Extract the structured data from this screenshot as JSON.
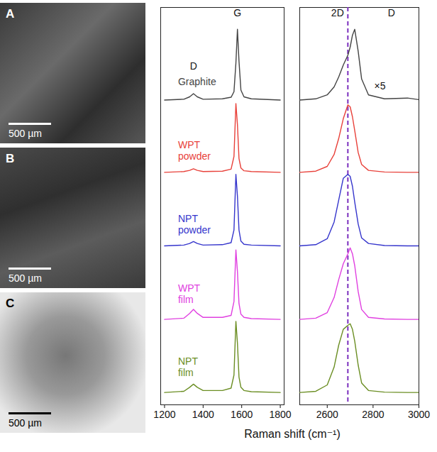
{
  "chart_data": [
    {
      "type": "line",
      "xlabel": "Raman shift (cm⁻¹)",
      "xlim": [
        1180,
        1820
      ],
      "xticks": [
        1200,
        1400,
        1600,
        1800
      ],
      "ylim": [
        0,
        100
      ],
      "tick_labels": "x",
      "x": [
        1200,
        1300,
        1330,
        1350,
        1370,
        1400,
        1500,
        1545,
        1560,
        1570,
        1578,
        1586,
        1596,
        1612,
        1650,
        1800
      ],
      "series": [
        {
          "name": "Graphite",
          "color": "#444444",
          "label_y": 81.3,
          "values": [
            76.7,
            76.9,
            77.5,
            78.3,
            77.5,
            76.9,
            77.0,
            77.4,
            78.8,
            86.0,
            94.5,
            86.5,
            79.2,
            77.5,
            77.0,
            76.7
          ]
        },
        {
          "name": "WPT powder",
          "color": "#e8413a",
          "label_y": 64,
          "values": [
            58.5,
            58.7,
            59.0,
            59.4,
            59.0,
            58.7,
            58.8,
            59.3,
            62.5,
            75.8,
            70.5,
            62.0,
            59.6,
            58.9,
            58.7,
            58.5
          ]
        },
        {
          "name": "NPT powder",
          "color": "#3535cc",
          "label_y": 45.5,
          "values": [
            40.0,
            40.2,
            40.6,
            41.1,
            40.6,
            40.2,
            40.3,
            40.8,
            44.0,
            58.0,
            52.5,
            44.0,
            41.2,
            40.4,
            40.2,
            40.0
          ]
        },
        {
          "name": "WPT film",
          "color": "#e040e0",
          "label_y": 28,
          "values": [
            21.5,
            21.8,
            23.0,
            24.0,
            23.0,
            22.0,
            22.0,
            22.5,
            26.0,
            39.0,
            33.5,
            25.5,
            22.8,
            22.0,
            21.7,
            21.5
          ]
        },
        {
          "name": "NPT film",
          "color": "#6b8e23",
          "label_y": 9.5,
          "values": [
            3.1,
            3.4,
            4.4,
            5.2,
            4.4,
            3.6,
            3.6,
            4.2,
            7.5,
            21.0,
            15.5,
            7.0,
            4.4,
            3.6,
            3.3,
            3.1
          ]
        }
      ],
      "series_label_x": 1270,
      "annotations": [
        {
          "text": "D",
          "x": 1350,
          "y": 85.2
        },
        {
          "text": "G",
          "x": 1578,
          "y": 98.5
        }
      ]
    },
    {
      "type": "line",
      "xlim": [
        2480,
        3000
      ],
      "xticks": [
        2600,
        2800,
        3000
      ],
      "ylim": [
        0,
        100
      ],
      "tick_labels": "x",
      "x": [
        2480,
        2550,
        2600,
        2630,
        2650,
        2670,
        2690,
        2700,
        2710,
        2720,
        2735,
        2750,
        2780,
        2850,
        2950,
        3000
      ],
      "series": [
        {
          "color": "#444444",
          "values": [
            76.7,
            77.0,
            78.0,
            80.0,
            82.5,
            85.5,
            88.0,
            90.0,
            93.0,
            94.5,
            89.0,
            82.0,
            78.0,
            77.0,
            77.2,
            76.8
          ]
        },
        {
          "color": "#e8413a",
          "values": [
            58.5,
            58.8,
            60.0,
            63.0,
            67.0,
            72.0,
            75.5,
            75.0,
            72.5,
            69.0,
            63.5,
            60.5,
            59.0,
            58.6,
            58.5,
            58.5
          ]
        },
        {
          "color": "#3535cc",
          "values": [
            40.0,
            40.3,
            41.8,
            46.0,
            51.5,
            57.0,
            58.0,
            57.5,
            55.0,
            51.0,
            45.5,
            42.0,
            40.6,
            40.1,
            40.0,
            40.0
          ]
        },
        {
          "color": "#e040e0",
          "values": [
            21.5,
            21.8,
            23.2,
            27.0,
            31.5,
            35.5,
            38.0,
            39.5,
            38.0,
            35.0,
            28.5,
            24.0,
            22.0,
            21.6,
            21.5,
            21.5
          ]
        },
        {
          "color": "#6b8e23",
          "values": [
            3.1,
            3.4,
            5.0,
            9.5,
            15.0,
            19.0,
            20.0,
            20.4,
            19.0,
            16.0,
            10.0,
            5.5,
            3.6,
            3.2,
            3.1,
            3.1
          ]
        }
      ],
      "vlines": [
        {
          "x": 2690,
          "color": "#7b2fbe",
          "line_style": "dashed"
        }
      ],
      "annotations": [
        {
          "text": "2D",
          "x": 2645,
          "y": 98.5
        },
        {
          "text": "D",
          "x": 2880,
          "y": 98.5
        },
        {
          "text": "×5",
          "x": 2830,
          "y": 80.2
        }
      ]
    }
  ],
  "images": [
    {
      "label": "A",
      "scale_bar": "500 µm"
    },
    {
      "label": "B",
      "scale_bar": "500 µm"
    },
    {
      "label": "C",
      "scale_bar": "500 µm"
    }
  ]
}
